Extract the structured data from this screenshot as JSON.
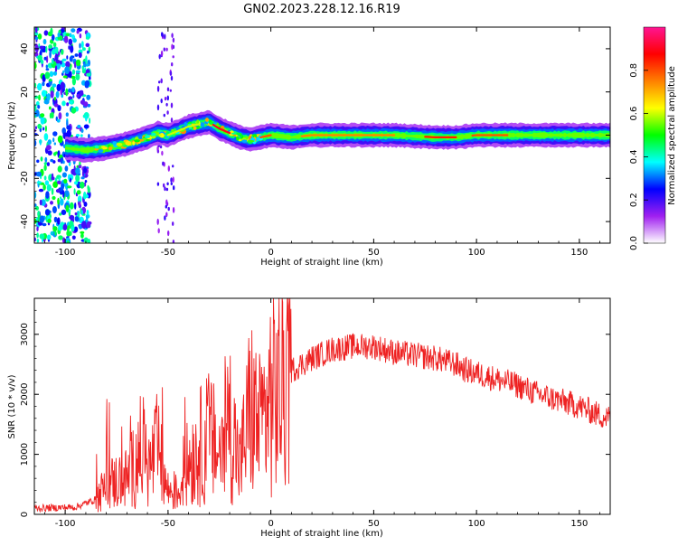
{
  "page": {
    "title": "GN02.2023.228.12.16.R19"
  },
  "chart_data": [
    {
      "type": "heatmap",
      "xlabel": "Height of straight line (km)",
      "ylabel": "Frequency (Hz)",
      "xlim": [
        -115,
        165
      ],
      "ylim": [
        -50,
        50
      ],
      "xticks": [
        -100,
        -50,
        0,
        50,
        100,
        150
      ],
      "yticks": [
        -40,
        -20,
        0,
        20,
        40
      ],
      "xtick_labels": [
        "-100",
        "-50",
        "0",
        "50",
        "100",
        "150"
      ],
      "ytick_labels": [
        "-40",
        "-20",
        "0",
        "20",
        "40"
      ],
      "grid": false,
      "ridge": {
        "x": [
          -115,
          -100,
          -90,
          -80,
          -70,
          -60,
          -55,
          -50,
          -45,
          -40,
          -35,
          -30,
          -25,
          -20,
          -15,
          -10,
          -5,
          0,
          10,
          20,
          40,
          60,
          80,
          90,
          100,
          120,
          140,
          165
        ],
        "y": [
          -5,
          -6,
          -7,
          -6,
          -4,
          -1,
          1,
          0,
          2,
          4,
          5,
          6,
          3,
          1,
          -1,
          -2,
          -1,
          0,
          -1,
          0,
          0,
          0,
          -1,
          -1,
          0,
          0,
          0,
          0
        ]
      },
      "peak_segments": [
        {
          "x": [
            -50,
            -35
          ],
          "level": 0.6
        },
        {
          "x": [
            -28,
            -20
          ],
          "level": 0.9
        },
        {
          "x": [
            -5,
            0
          ],
          "level": 0.8
        },
        {
          "x": [
            15,
            60
          ],
          "level": 0.75
        },
        {
          "x": [
            75,
            90
          ],
          "level": 0.85
        },
        {
          "x": [
            98,
            115
          ],
          "level": 0.8
        }
      ],
      "colorbar": {
        "label": "Normalized spectral amplitude",
        "range": [
          0,
          1
        ],
        "ticks": [
          0.0,
          0.2,
          0.4,
          0.6,
          0.8
        ],
        "tick_labels": [
          "0.0",
          "0.2",
          "0.4",
          "0.6",
          "0.8"
        ],
        "stops": [
          "#ffffff",
          "#a020f0",
          "#0000ff",
          "#00ffff",
          "#00ff00",
          "#ffff00",
          "#ff8000",
          "#ff0000",
          "#ff1493"
        ]
      }
    },
    {
      "type": "line",
      "xlabel": "Height of straight line (km)",
      "ylabel": "SNR (10 * v/v)",
      "xlim": [
        -115,
        165
      ],
      "ylim": [
        0,
        3600
      ],
      "xticks": [
        -100,
        -50,
        0,
        50,
        100,
        150
      ],
      "yticks": [
        0,
        1000,
        2000,
        3000
      ],
      "xtick_labels": [
        "-100",
        "-50",
        "0",
        "50",
        "100",
        "150"
      ],
      "ytick_labels": [
        "0",
        "1000",
        "2000",
        "3000"
      ],
      "grid": false,
      "series_color": "#ee2222",
      "envelope": {
        "x": [
          -115,
          -95,
          -85,
          -80,
          -75,
          -70,
          -65,
          -62,
          -60,
          -55,
          -52,
          -50,
          -45,
          -40,
          -35,
          -30,
          -25,
          -20,
          -15,
          -10,
          -5,
          0,
          5,
          10,
          20,
          30,
          40,
          50,
          60,
          70,
          80,
          90,
          95,
          100,
          110,
          120,
          130,
          140,
          150,
          160,
          165
        ],
        "y": [
          100,
          120,
          250,
          500,
          550,
          600,
          900,
          1200,
          700,
          1100,
          600,
          400,
          350,
          900,
          1100,
          1300,
          1000,
          1600,
          800,
          1800,
          1400,
          2000,
          2100,
          2400,
          2600,
          2750,
          2800,
          2800,
          2700,
          2650,
          2600,
          2500,
          2400,
          2350,
          2250,
          2150,
          2000,
          1900,
          1800,
          1650,
          1600
        ]
      }
    }
  ]
}
